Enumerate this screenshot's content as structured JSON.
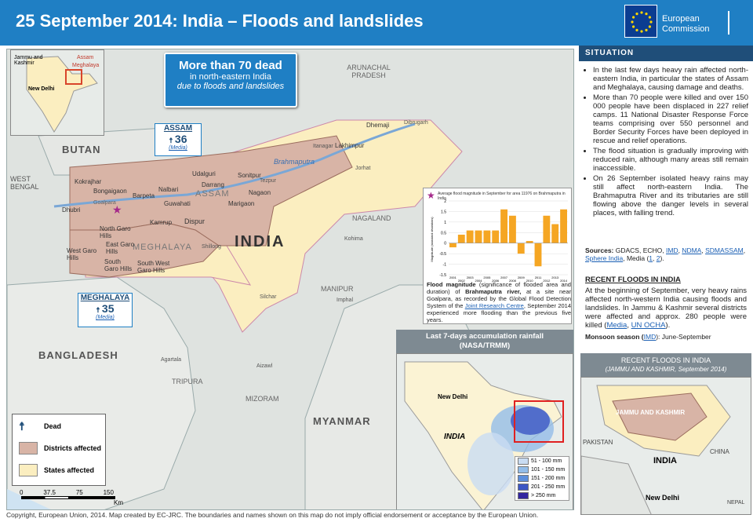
{
  "header": {
    "title": "25 September 2014: India – Floods and landslides",
    "logo_line1": "European",
    "logo_line2": "Commission"
  },
  "colors": {
    "header_blue": "#1f7fc4",
    "districts_affected": "#d8b4a6",
    "states_affected": "#fbeec0",
    "dead_icon": "#1f4e79"
  },
  "map": {
    "dead_box": {
      "line1": "More than 70 dead",
      "line2": "in north-eastern India",
      "line3": "due to floods and landslides"
    },
    "callouts": {
      "assam": {
        "state": "ASSAM",
        "count": "36",
        "media": "(Media)"
      },
      "meghalaya": {
        "state": "MEGHALAYA",
        "count": "35",
        "media": "(Media)"
      }
    },
    "overview": {
      "jammu": "Jammu and Kashmir",
      "assam": "Assam",
      "meghalaya": "Meghalaya",
      "delhi": "New Delhi"
    },
    "country_labels": {
      "bhutan": "BUTAN",
      "west_bengal": "WEST BENGAL",
      "bangladesh": "BANGLADESH",
      "india": "INDIA",
      "myanmar": "MYANMAR",
      "arunachal": "ARUNACHAL PRADESH",
      "nagaland": "NAGALAND",
      "manipur": "MANIPUR",
      "mizoram": "MIZORAM",
      "tripura": "TRIPURA",
      "assam": "ASSAM",
      "meghalaya": "MEGHALAYA"
    },
    "districts": [
      "Kokrajhar",
      "Bongaigaon",
      "Barpeta",
      "Nalbari",
      "Udalguri",
      "Darrang",
      "Sonitpur",
      "Dhubri",
      "Goalpara",
      "Kamrup",
      "Guwahati",
      "Marigaon",
      "Nagaon",
      "Dispur",
      "North Garo Hills",
      "East Garo Hills",
      "West Garo Hills",
      "South Garo Hills",
      "South West Garo Hills",
      "Shillong",
      "Dhemaji",
      "Lakhimpur",
      "Dibrugarh",
      "Itanagar",
      "Jorhat",
      "Tezpur",
      "Kohima",
      "Silchar",
      "Imphal",
      "Agartala",
      "Aizawl",
      "Brahmaputra"
    ],
    "legend": {
      "dead": "Dead",
      "districts": "Districts affected",
      "states": "States affected"
    },
    "scale": {
      "ticks": [
        "0",
        "37.5",
        "75",
        "150"
      ],
      "unit": "Km"
    }
  },
  "flood_chart": {
    "title": "Average flood magnitude in September for area 11976 on Brahmaputra in India",
    "caption_bold1": "Flood magnitude",
    "caption1": " (significance of flooded area and duration) of ",
    "caption_bold2": "Brahmaputra river,",
    "caption2": " at a site near Goalpara, as recorded by the Global Flood Detection System of the ",
    "caption_link": "Joint Research Centre",
    "caption3": ", September 2014 experienced more flooding than the previous five years."
  },
  "chart_data": {
    "type": "bar",
    "title": "Average flood magnitude in September for area 11976 on Brahmaputra in India",
    "ylabel": "Magnitude (standard deviations)",
    "categories": [
      "2001",
      "2002",
      "2003",
      "2004",
      "2005",
      "2006",
      "2007",
      "2008",
      "2009",
      "2010",
      "2011",
      "2012",
      "2013",
      "2014"
    ],
    "values": [
      -0.2,
      0.4,
      0.6,
      0.6,
      0.6,
      0.6,
      1.6,
      1.3,
      -0.5,
      0.1,
      -1.1,
      1.3,
      0.9,
      1.6
    ],
    "ylim": [
      -1.5,
      2
    ],
    "yticks": [
      "2",
      "1.5",
      "1",
      "0.5",
      "0",
      "-0.5",
      "-1",
      "-1.5"
    ],
    "grid": true,
    "bar_color": "#f5a623"
  },
  "rain_map": {
    "title_line1": "Last 7-days accumulation rainfall",
    "title_line2": "(NASA/TRMM)",
    "delhi": "New Delhi",
    "india": "INDIA",
    "legend": [
      {
        "label": "51 - 100 mm",
        "color": "#c9dcf2"
      },
      {
        "label": "101 - 150 mm",
        "color": "#93bde9"
      },
      {
        "label": "151 - 200 mm",
        "color": "#5d8fdc"
      },
      {
        "label": "201 - 250 mm",
        "color": "#3b56c4"
      },
      {
        "label": "> 250 mm",
        "color": "#3326a0"
      }
    ]
  },
  "panel": {
    "situation_title": "SITUATION",
    "bullets": [
      "In the last few days heavy rain affected north-eastern India, in particular the states of Assam and Meghalaya, causing damage and deaths.",
      "More than 70 people were killed and over 150 000 people have been displaced in 227 relief camps. 11 National Disaster Response Force teams comprising over 550 personnel and Border Security Forces have been deployed in rescue and relief operations.",
      "The flood situation is gradually improving with reduced rain, although many areas still remain inaccessible.",
      "On 26 September isolated heavy rains may still affect north-eastern India. The Brahmaputra River and its tributaries are still flowing above the danger levels in several places, with falling trend."
    ],
    "sources_label": "Sources:",
    "sources_text": "GDACS, ECHO,",
    "sources_links": [
      "IMD",
      "NDMA",
      "SDMASSAM",
      "Sphere India"
    ],
    "sources_media": "Media (",
    "sources_media_links": [
      "1",
      "2"
    ],
    "recent_title": "RECENT FLOODS IN INDIA",
    "recent_text": "At the beginning of September, very heavy rains affected north-western India causing floods and landslides. In Jammu & Kashmir several districts were affected and approx. 280 people were killed (",
    "recent_links": [
      "Media",
      "UN OCHA"
    ],
    "monsoon_label": "Monsoon season (",
    "monsoon_link": "IMD",
    "monsoon_text": "): June-September",
    "inset_title": "RECENT FLOODS IN INDIA",
    "inset_sub": "(JAMMU AND KASHMIR, September 2014)",
    "inset_labels": {
      "jk": "JAMMU AND KASHMIR",
      "pakistan": "PAKISTAN",
      "china": "CHINA",
      "india": "INDIA",
      "delhi": "New Delhi",
      "nepal": "NEPAL"
    }
  },
  "footer": {
    "copyright": "Copyright, European Union, 2014. Map created by EC-JRC. The boundaries and names shown on this map do not imply official endorsement or acceptance by the European Union."
  }
}
